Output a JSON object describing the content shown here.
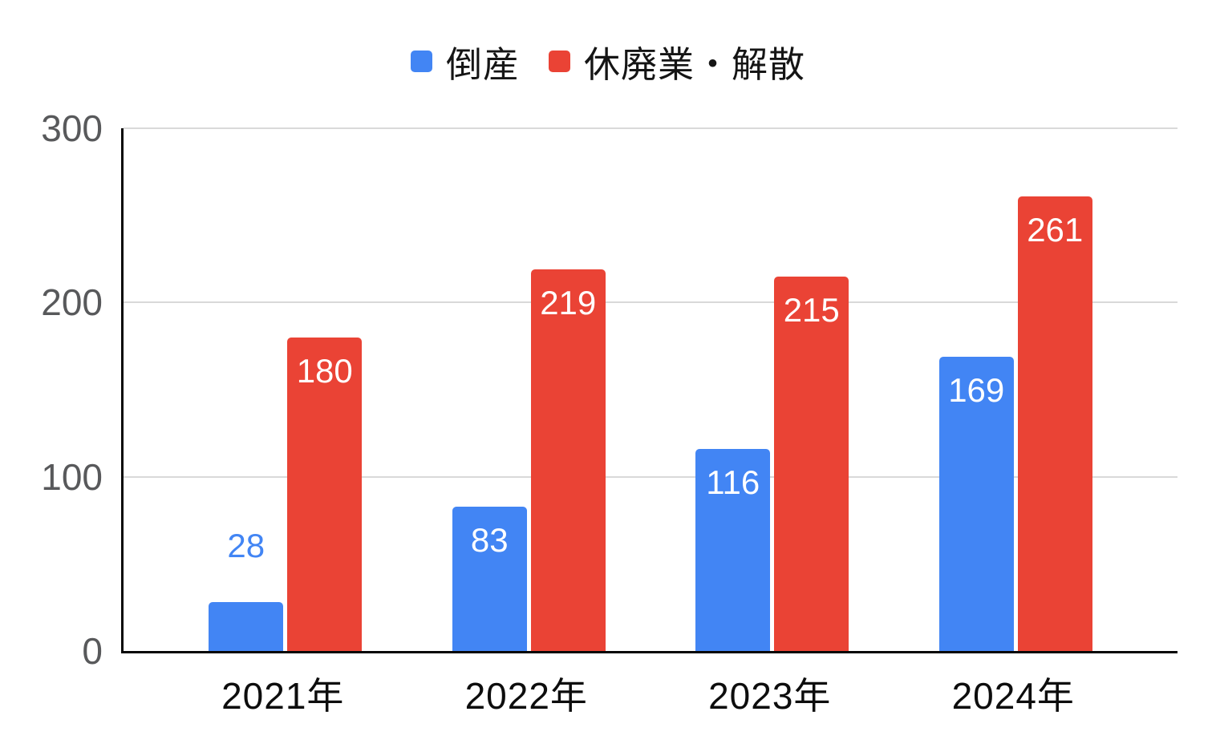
{
  "chart_data": {
    "type": "bar",
    "title": "",
    "categories": [
      "2021年",
      "2022年",
      "2023年",
      "2024年"
    ],
    "series": [
      {
        "id": "tosan",
        "name": "倒産",
        "color": "#4285f4",
        "values": [
          28,
          83,
          116,
          169
        ]
      },
      {
        "id": "kyuhaigyo-kaisan",
        "name": "休廃業・解散",
        "color": "#ea4335",
        "values": [
          180,
          219,
          215,
          261
        ]
      }
    ],
    "ylim": [
      0,
      300
    ],
    "yticks": [
      0,
      100,
      200,
      300
    ],
    "grid": "horizontal",
    "legend_position": "top",
    "data_label_inside_color": "#ffffff",
    "axis_line_color": "#060606",
    "gridline_color": "#d9d9d9",
    "ytick_color": "#58595b",
    "xtick_color": "#0d0d0d"
  }
}
